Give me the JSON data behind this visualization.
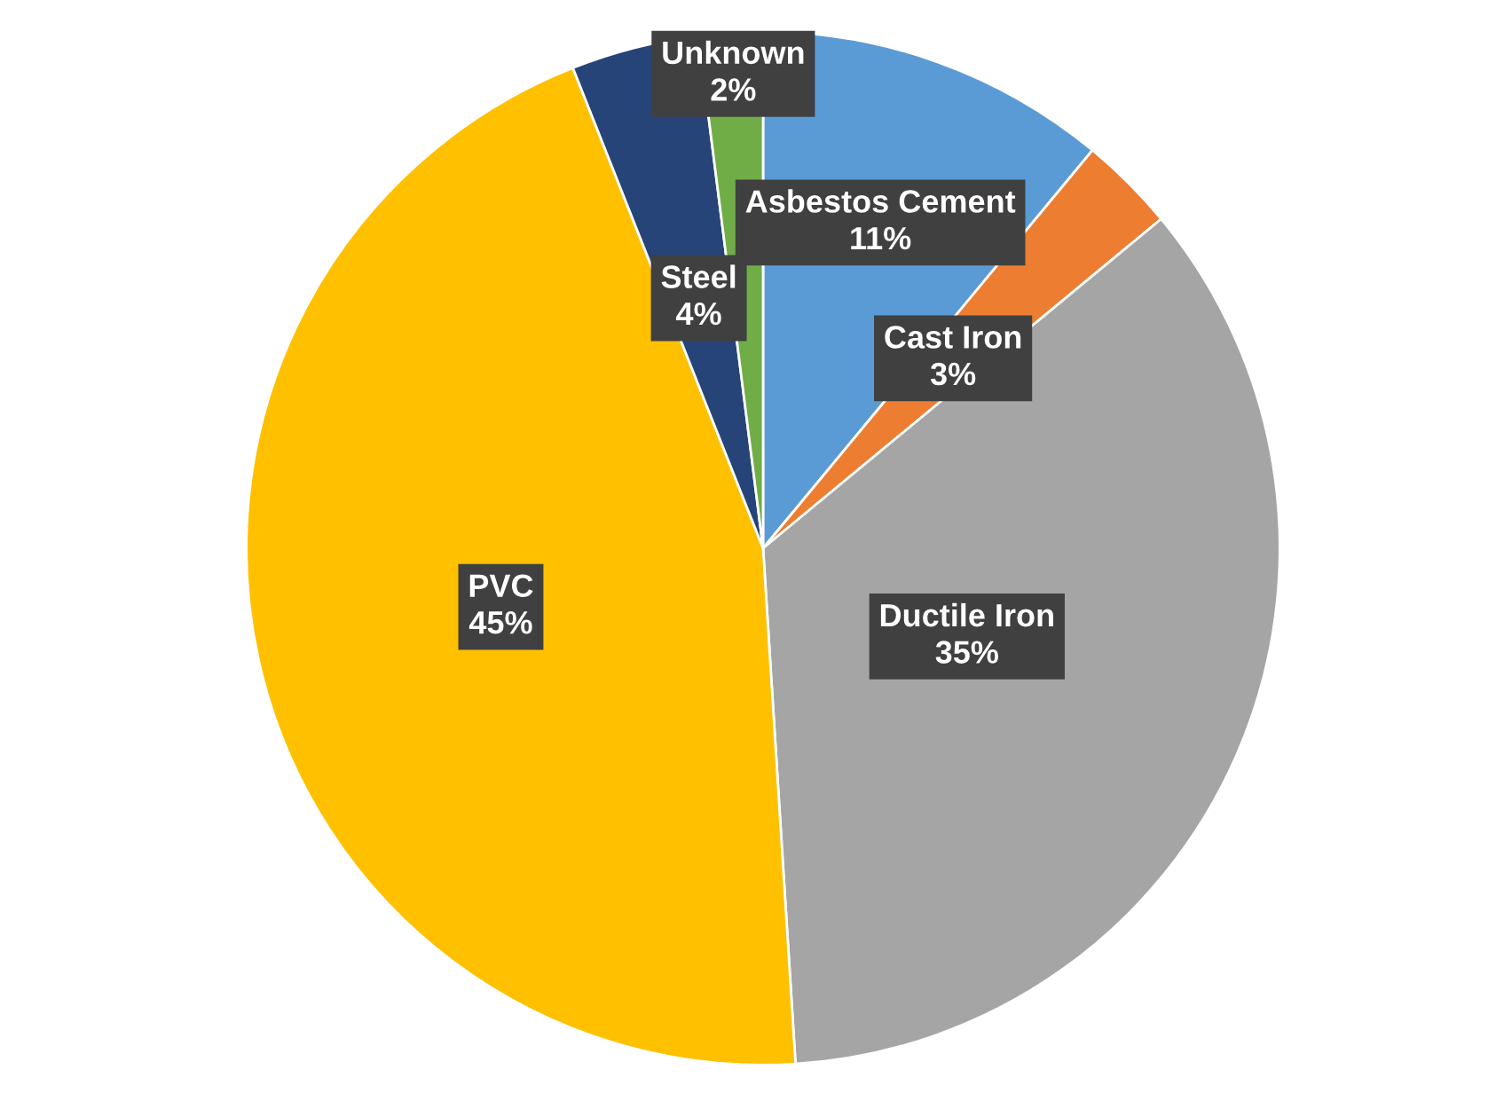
{
  "chart_data": {
    "type": "pie",
    "categories": [
      "Asbestos Cement",
      "Cast Iron",
      "Ductile Iron",
      "PVC",
      "Steel",
      "Unknown"
    ],
    "values": [
      11,
      3,
      35,
      45,
      4,
      2
    ],
    "colors": [
      "#5b9bd5",
      "#ed7d31",
      "#a5a5a5",
      "#ffc000",
      "#264478",
      "#70ad47"
    ],
    "value_labels": [
      "11%",
      "3%",
      "35%",
      "45%",
      "4%",
      "2%"
    ]
  }
}
